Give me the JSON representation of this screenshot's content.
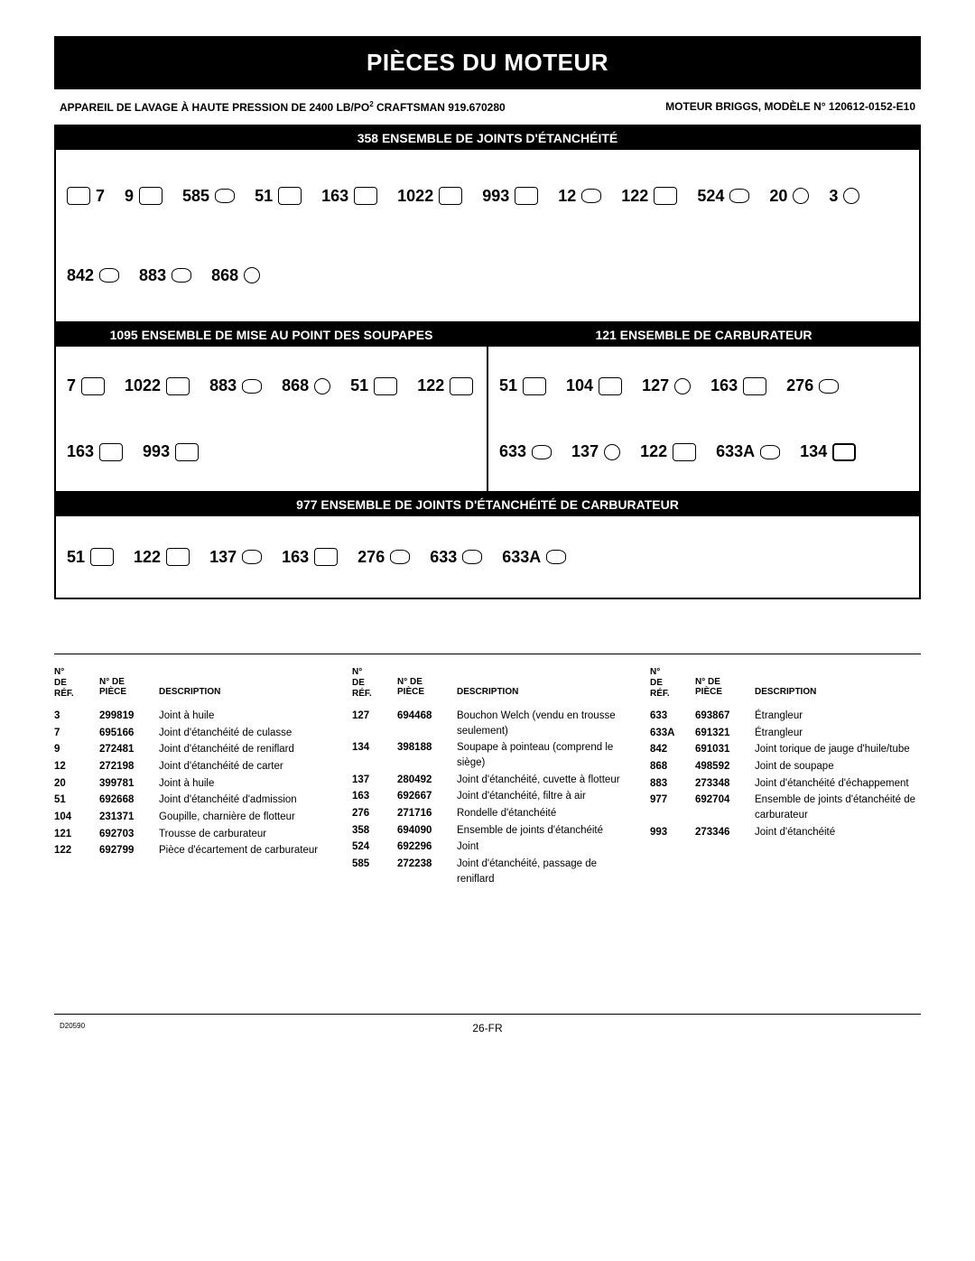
{
  "title": "PIÈCES DU MOTEUR",
  "subhead_left": "APPAREIL DE LAVAGE À HAUTE PRESSION DE 2400 LB/PO",
  "subhead_left_sup": "2",
  "subhead_left_tail": " CRAFTSMAN 919.670280",
  "subhead_right": "MOTEUR BRIGGS, MODÈLE N° 120612-0152-E10",
  "sections": {
    "a": {
      "head": "358 ENSEMBLE DE JOINTS D'ÉTANCHÉITÉ",
      "labels": [
        "7",
        "9",
        "585",
        "51",
        "163",
        "1022",
        "993",
        "12",
        "122",
        "524",
        "20",
        "3",
        "842",
        "883",
        "868"
      ]
    },
    "b": {
      "head": "1095 ENSEMBLE DE MISE AU POINT DES SOUPAPES",
      "labels": [
        "7",
        "1022",
        "883",
        "868",
        "51",
        "122",
        "163",
        "993"
      ]
    },
    "c": {
      "head": "121 ENSEMBLE DE CARBURATEUR",
      "labels": [
        "51",
        "104",
        "127",
        "163",
        "276",
        "633",
        "137",
        "122",
        "633A",
        "134"
      ]
    },
    "d": {
      "head": "977 ENSEMBLE DE JOINTS D'ÉTANCHÉITÉ DE CARBURATEUR",
      "labels": [
        "51",
        "122",
        "137",
        "163",
        "276",
        "633",
        "633A"
      ]
    }
  },
  "table_headers": {
    "c1a": "N°",
    "c1b": "DE",
    "c1c": "RÉF.",
    "c2a": "N° DE",
    "c2b": "PIÈCE",
    "c3": "DESCRIPTION"
  },
  "columns": [
    [
      {
        "r": "3",
        "p": "299819",
        "d": "Joint à huile"
      },
      {
        "r": "7",
        "p": "695166",
        "d": "Joint d'étanchéité de culasse"
      },
      {
        "r": "9",
        "p": "272481",
        "d": "Joint d'étanchéité de reniflard"
      },
      {
        "r": "12",
        "p": "272198",
        "d": "Joint d'étanchéité de carter"
      },
      {
        "r": "20",
        "p": "399781",
        "d": "Joint à huile"
      },
      {
        "r": "51",
        "p": "692668",
        "d": "Joint d'étanchéité d'admission"
      },
      {
        "r": "104",
        "p": "231371",
        "d": "Goupille, charnière de flotteur"
      },
      {
        "r": "121",
        "p": "692703",
        "d": "Trousse de carburateur"
      },
      {
        "r": "122",
        "p": "692799",
        "d": "Pièce d'écartement de carburateur"
      }
    ],
    [
      {
        "r": "127",
        "p": "694468",
        "d": "Bouchon Welch (vendu en trousse seulement)"
      },
      {
        "r": "134",
        "p": "398188",
        "d": "Soupape à pointeau (comprend le siège)"
      },
      {
        "r": "137",
        "p": "280492",
        "d": "Joint d'étanchéité, cuvette à flotteur"
      },
      {
        "r": "163",
        "p": "692667",
        "d": "Joint d'étanchéité, filtre à air"
      },
      {
        "r": "276",
        "p": "271716",
        "d": "Rondelle d'étanchéité"
      },
      {
        "r": "358",
        "p": "694090",
        "d": "Ensemble de joints d'étanchéité"
      },
      {
        "r": "524",
        "p": "692296",
        "d": "Joint"
      },
      {
        "r": "585",
        "p": "272238",
        "d": "Joint d'étanchéité, passage de reniflard"
      }
    ],
    [
      {
        "r": "633",
        "p": "693867",
        "d": "Étrangleur"
      },
      {
        "r": "633A",
        "p": "691321",
        "d": "Étrangleur"
      },
      {
        "r": "842",
        "p": "691031",
        "d": "Joint torique de jauge d'huile/tube"
      },
      {
        "r": "868",
        "p": "498592",
        "d": "Joint de soupape"
      },
      {
        "r": "883",
        "p": "273348",
        "d": "Joint d'étanchéité d'échappement"
      },
      {
        "r": "977",
        "p": "692704",
        "d": "Ensemble de joints d'étanchéité de carburateur"
      },
      {
        "r": "993",
        "p": "273346",
        "d": "Joint d'étanchéité"
      }
    ]
  ],
  "page_footer": "26-FR",
  "doc_code": "D20590"
}
